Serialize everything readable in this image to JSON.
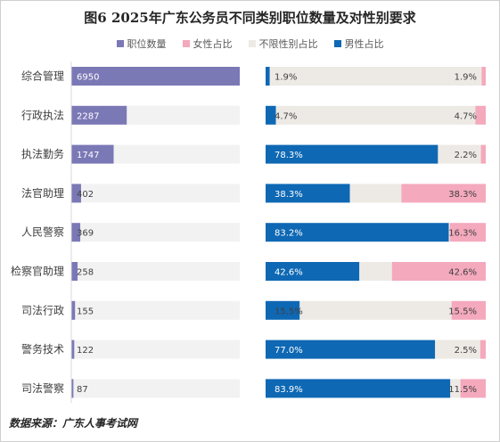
{
  "chart_data": {
    "type": "bar",
    "title": "图6  2025年广东公务员不同类别职位数量及对性别要求",
    "categories": [
      "综合管理",
      "行政执法",
      "执法勤务",
      "法官助理",
      "人民警察",
      "检察官助理",
      "司法行政",
      "警务技术",
      "司法警察"
    ],
    "legend": [
      "职位数量",
      "女性占比",
      "不限性别占比",
      "男性占比"
    ],
    "series": [
      {
        "name": "职位数量",
        "color": "#7b78b6",
        "values": [
          6950,
          2287,
          1747,
          402,
          369,
          258,
          155,
          122,
          87
        ]
      },
      {
        "name": "男性占比",
        "color": "#0e68b4",
        "values": [
          1.9,
          4.7,
          78.3,
          38.3,
          83.2,
          42.6,
          15.5,
          77.0,
          83.9
        ]
      },
      {
        "name": "不限性别占比",
        "color": "#edeae5",
        "values": [
          96.2,
          90.6,
          19.5,
          23.4,
          0.5,
          14.8,
          69.0,
          20.5,
          4.6
        ]
      },
      {
        "name": "女性占比",
        "color": "#f4a9bd",
        "values": [
          1.9,
          4.7,
          2.2,
          38.3,
          16.3,
          42.6,
          15.5,
          2.5,
          11.5
        ]
      }
    ],
    "value_labels": {
      "male": [
        "1.9%",
        "4.7%",
        "78.3%",
        "38.3%",
        "83.2%",
        "42.6%",
        "15.5%",
        "77.0%",
        "83.9%"
      ],
      "female": [
        "1.9%",
        "4.7%",
        "2.2%",
        "38.3%",
        "16.3%",
        "42.6%",
        "15.5%",
        "2.5%",
        "11.5%"
      ]
    },
    "xlim_count": [
      0,
      6950
    ],
    "xlim_percent": [
      0,
      100
    ]
  },
  "source": "数据来源：广东人事考试网"
}
